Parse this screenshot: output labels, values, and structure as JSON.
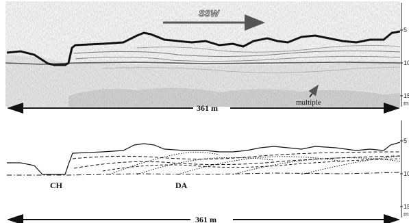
{
  "top_panel": {
    "direction_label": "SSW",
    "annotation_label": "multiple",
    "scale_label": "361 m",
    "depth_ticks": [
      "5",
      "10",
      "15"
    ],
    "depth_unit": "m"
  },
  "bottom_panel": {
    "unit_labels": [
      "CH",
      "DA"
    ],
    "scale_label": "361 m",
    "depth_ticks": [
      "5",
      "10",
      "15"
    ],
    "depth_unit": "m"
  },
  "colors": {
    "seafloor": "#111111",
    "noise_background": "#f4f4f4",
    "arrow": "#555555"
  }
}
